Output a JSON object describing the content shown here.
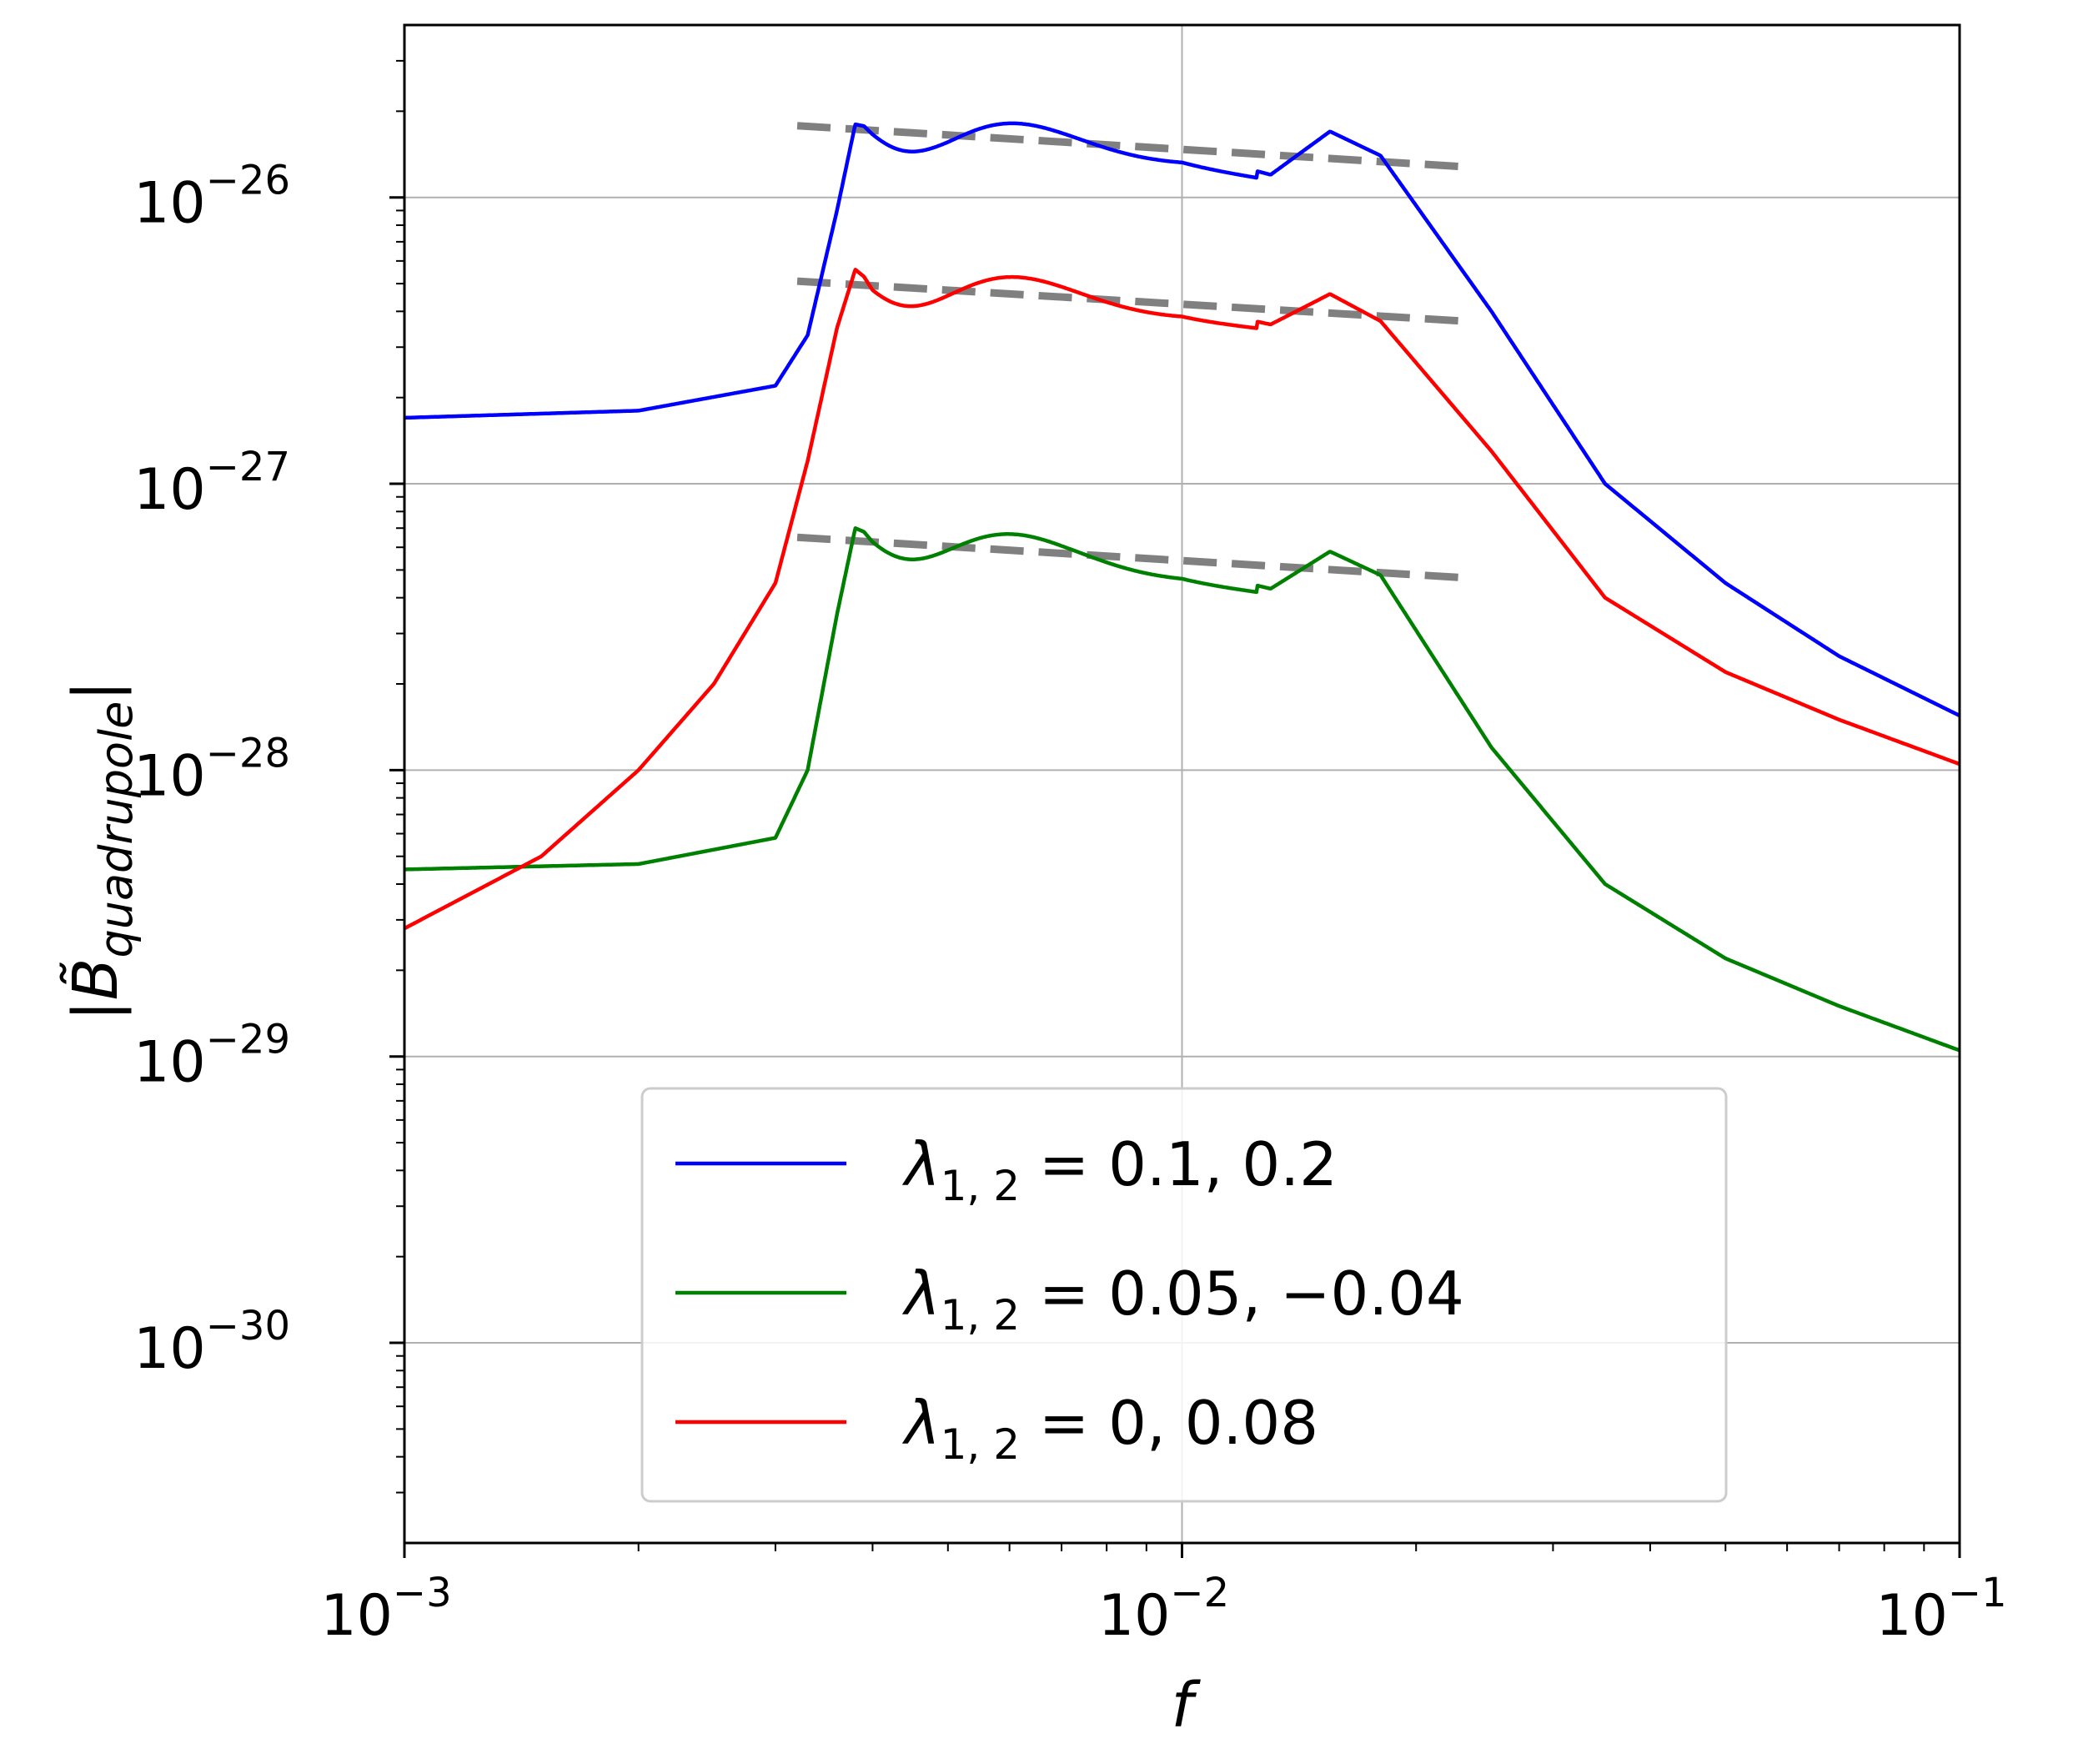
{
  "chart_data": {
    "type": "line",
    "x_scale": "log",
    "y_scale": "log",
    "xlim": [
      0.001,
      0.1
    ],
    "ylim": [
      2e-31,
      4e-26
    ],
    "grid": true,
    "xlabel": "f",
    "ylabel": "|B̃_quadrupole|",
    "x_ticks": [
      {
        "value": 0.001,
        "base": "10",
        "exp": "−3"
      },
      {
        "value": 0.01,
        "base": "10",
        "exp": "−2"
      },
      {
        "value": 0.1,
        "base": "10",
        "exp": "−1"
      }
    ],
    "y_ticks": [
      {
        "value": 1e-26,
        "base": "10",
        "exp": "−26"
      },
      {
        "value": 1e-27,
        "base": "10",
        "exp": "−27"
      },
      {
        "value": 1e-28,
        "base": "10",
        "exp": "−28"
      },
      {
        "value": 1e-29,
        "base": "10",
        "exp": "−29"
      },
      {
        "value": 1e-30,
        "base": "10",
        "exp": "−30"
      }
    ],
    "legend_position": "lower-center",
    "series": [
      {
        "name": "λ1,2 = 0.1, 0.2",
        "legend": {
          "symbol": "λ",
          "sub": "1, 2",
          "rest": " = 0.1, 0.2"
        },
        "color": "#0000ff",
        "baseline": 1.7e-27,
        "plateau": 1.65e-26,
        "x": [
          0.001,
          0.002,
          0.003,
          0.0033,
          0.0036,
          0.0038,
          0.004,
          0.005,
          0.007,
          0.01,
          0.013,
          0.0155,
          0.018,
          0.025,
          0.035,
          0.05,
          0.07,
          0.1
        ],
        "y": [
          1.7e-27,
          1.8e-27,
          2.2e-27,
          3.3e-27,
          9e-27,
          1.8e-26,
          1.75e-26,
          1.65e-26,
          1.55e-26,
          1.45e-26,
          1.2e-26,
          1.7e-26,
          1.4e-26,
          4e-27,
          1e-27,
          4.5e-28,
          2.5e-28,
          1.55e-28
        ]
      },
      {
        "name": "λ1,2 = 0.05, −0.04",
        "legend": {
          "symbol": "λ",
          "sub": "1, 2",
          "rest": " = 0.05, −0.04"
        },
        "color": "#008000",
        "baseline": 4.5e-29,
        "plateau": 6.5e-28,
        "x": [
          0.001,
          0.002,
          0.003,
          0.0033,
          0.0036,
          0.0038,
          0.004,
          0.005,
          0.007,
          0.01,
          0.013,
          0.0155,
          0.018,
          0.025,
          0.035,
          0.05,
          0.07,
          0.1
        ],
        "y": [
          4.5e-29,
          4.7e-29,
          5.8e-29,
          1e-28,
          3.5e-28,
          7e-28,
          6.6e-28,
          6.2e-28,
          5.6e-28,
          5.1e-28,
          4.3e-28,
          5.8e-28,
          4.8e-28,
          1.2e-28,
          4e-29,
          2.2e-29,
          1.5e-29,
          1.05e-29
        ]
      },
      {
        "name": "λ1,2 = 0, 0.08",
        "legend": {
          "symbol": "λ",
          "sub": "1, 2",
          "rest": " = 0, 0.08"
        },
        "color": "#ff0000",
        "baseline": 2.8e-29,
        "plateau": 5e-27,
        "x": [
          0.001,
          0.0015,
          0.002,
          0.0025,
          0.003,
          0.0033,
          0.0036,
          0.0038,
          0.004,
          0.005,
          0.007,
          0.01,
          0.013,
          0.0155,
          0.018,
          0.025,
          0.035,
          0.05,
          0.07,
          0.1
        ],
        "y": [
          2.8e-29,
          5e-29,
          1e-28,
          2e-28,
          4.5e-28,
          1.2e-27,
          3.5e-27,
          5.6e-27,
          5e-27,
          4.8e-27,
          4.5e-27,
          4.2e-27,
          3.6e-27,
          4.6e-27,
          3.7e-27,
          1.3e-27,
          4e-28,
          2.2e-28,
          1.5e-28,
          1.05e-28
        ]
      }
    ],
    "reference_lines": [
      {
        "style": "dashed",
        "color": "#808080",
        "x": [
          0.0032,
          0.023
        ],
        "y": [
          1.78e-26,
          1.28e-26
        ]
      },
      {
        "style": "dashed",
        "color": "#808080",
        "x": [
          0.0032,
          0.023
        ],
        "y": [
          5.1e-27,
          3.7e-27
        ]
      },
      {
        "style": "dashed",
        "color": "#808080",
        "x": [
          0.0032,
          0.023
        ],
        "y": [
          6.5e-28,
          4.7e-28
        ]
      }
    ]
  }
}
